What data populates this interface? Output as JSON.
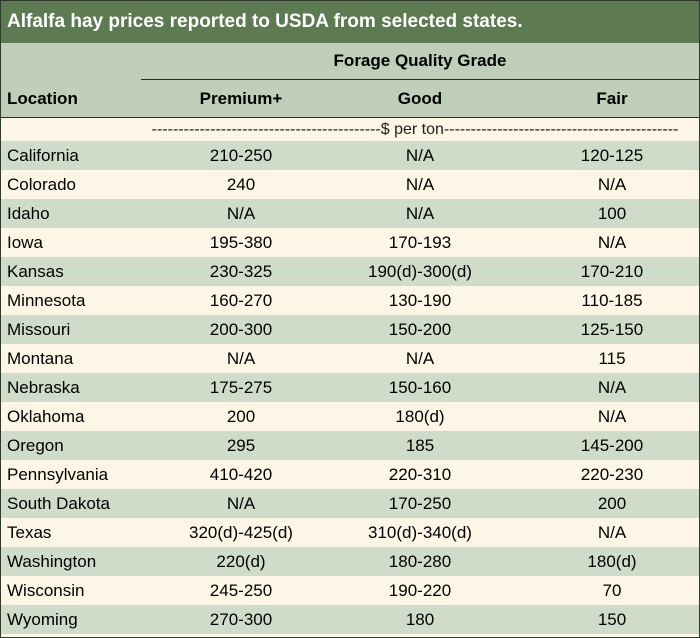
{
  "title": "Alfalfa hay prices reported to USDA from selected states.",
  "header": {
    "group_label": "Forage Quality Grade",
    "location_label": "Location",
    "columns": [
      "Premium+",
      "Good",
      "Fair"
    ]
  },
  "units_label": "-------------------------------------------$ per ton--------------------------------------------",
  "rows": [
    {
      "location": "California",
      "premium": "210-250",
      "good": "N/A",
      "fair": "120-125"
    },
    {
      "location": "Colorado",
      "premium": "240",
      "good": "N/A",
      "fair": "N/A"
    },
    {
      "location": "Idaho",
      "premium": "N/A",
      "good": "N/A",
      "fair": "100"
    },
    {
      "location": "Iowa",
      "premium": "195-380",
      "good": "170-193",
      "fair": "N/A"
    },
    {
      "location": "Kansas",
      "premium": "230-325",
      "good": "190(d)-300(d)",
      "fair": "170-210"
    },
    {
      "location": "Minnesota",
      "premium": "160-270",
      "good": "130-190",
      "fair": "110-185"
    },
    {
      "location": "Missouri",
      "premium": "200-300",
      "good": "150-200",
      "fair": "125-150"
    },
    {
      "location": "Montana",
      "premium": "N/A",
      "good": "N/A",
      "fair": "115"
    },
    {
      "location": "Nebraska",
      "premium": "175-275",
      "good": "150-160",
      "fair": "N/A"
    },
    {
      "location": "Oklahoma",
      "premium": "200",
      "good": "180(d)",
      "fair": "N/A"
    },
    {
      "location": "Oregon",
      "premium": "295",
      "good": "185",
      "fair": "145-200"
    },
    {
      "location": "Pennsylvania",
      "premium": "410-420",
      "good": "220-310",
      "fair": "220-230"
    },
    {
      "location": "South Dakota",
      "premium": "N/A",
      "good": "170-250",
      "fair": "200"
    },
    {
      "location": "Texas",
      "premium": "320(d)-425(d)",
      "good": "310(d)-340(d)",
      "fair": "N/A"
    },
    {
      "location": "Washington",
      "premium": "220(d)",
      "good": "180-280",
      "fair": "180(d)"
    },
    {
      "location": "Wisconsin",
      "premium": "245-250",
      "good": "190-220",
      "fair": "70"
    },
    {
      "location": "Wyoming",
      "premium": "270-300",
      "good": "180",
      "fair": "150"
    }
  ],
  "colors": {
    "title_bg": "#5e7a52",
    "header_bg": "#bfcfb9",
    "stripe": "#d0dcca",
    "cream": "#fdf6e6"
  }
}
